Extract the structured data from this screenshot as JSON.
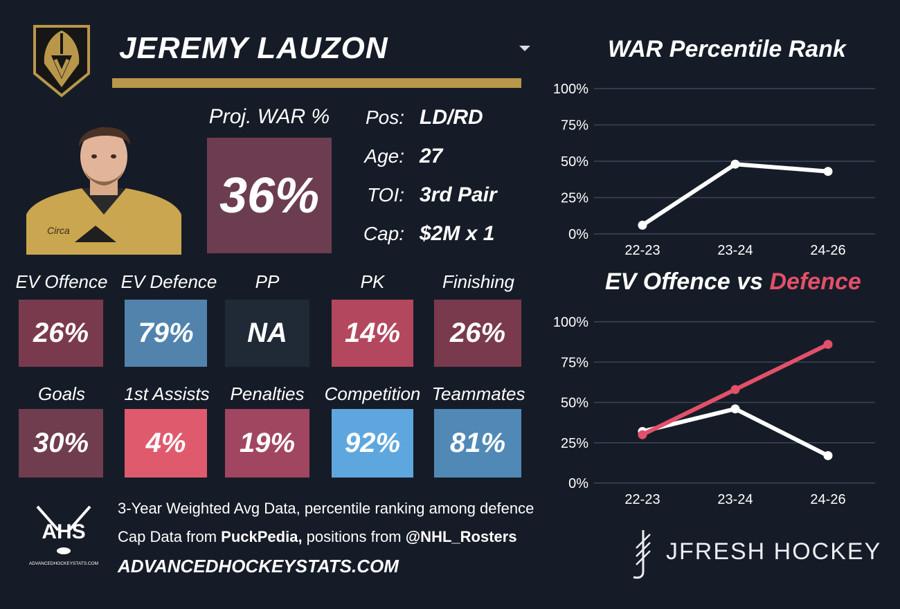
{
  "player": {
    "name": "JEREMY LAUZON",
    "team_logo": "vegas-golden-knights-helmet-logo",
    "headshot": "player-headshot-gold-jersey"
  },
  "projection": {
    "label": "Proj. WAR %",
    "value": "36%",
    "color": "#6c3d50"
  },
  "info": [
    {
      "key": "Pos:",
      "value": "LD/RD"
    },
    {
      "key": "Age:",
      "value": "27"
    },
    {
      "key": "TOI:",
      "value": "3rd Pair"
    },
    {
      "key": "Cap:",
      "value": "$2M x 1"
    }
  ],
  "metrics_row1": [
    {
      "label": "EV Offence",
      "value": "26%",
      "color": "#7a3a4d"
    },
    {
      "label": "EV Defence",
      "value": "79%",
      "color": "#5183ad"
    },
    {
      "label": "PP",
      "value": "NA",
      "color": "#1f2a36"
    },
    {
      "label": "PK",
      "value": "14%",
      "color": "#b3475e"
    },
    {
      "label": "Finishing",
      "value": "26%",
      "color": "#7a3a4d"
    }
  ],
  "metrics_row2": [
    {
      "label": "Goals",
      "value": "30%",
      "color": "#6f3d4d"
    },
    {
      "label": "1st Assists",
      "value": "4%",
      "color": "#e05a6d"
    },
    {
      "label": "Penalties",
      "value": "19%",
      "color": "#a04660"
    },
    {
      "label": "Competition",
      "value": "92%",
      "color": "#5ea7de"
    },
    {
      "label": "Teammates",
      "value": "81%",
      "color": "#5089b6"
    }
  ],
  "footer": {
    "line1": "3-Year Weighted Avg Data, percentile ranking among defence",
    "line2_a": "Cap Data from ",
    "line2_b": "PuckPedia,",
    "line2_c": " positions from ",
    "line2_d": "@NHL_Rosters",
    "url": "ADVANCEDHOCKEYSTATS.COM",
    "ahs_logo_text": "AHS",
    "ahs_logo_subtext": "ADVANCEDHOCKEYSTATS.COM",
    "brand": "JFRESH HOCKEY",
    "brand_icon": "hockey-stick-mark-icon"
  },
  "chart_data": [
    {
      "type": "line",
      "title": "WAR Percentile Rank",
      "categories": [
        "22-23",
        "23-24",
        "24-26"
      ],
      "series": [
        {
          "values": [
            6,
            48,
            43
          ],
          "color": "#ffffff"
        }
      ],
      "yticks": [
        "0%",
        "25%",
        "50%",
        "75%",
        "100%"
      ],
      "ylim": [
        0,
        100
      ],
      "grid": true
    },
    {
      "type": "line",
      "title_a": "EV Offence vs ",
      "title_b": "Defence",
      "categories": [
        "22-23",
        "23-24",
        "24-26"
      ],
      "series": [
        {
          "name": "EV Offence",
          "values": [
            32,
            46,
            17
          ],
          "color": "#ffffff"
        },
        {
          "name": "Defence",
          "values": [
            30,
            58,
            86
          ],
          "color": "#e2506a"
        }
      ],
      "yticks": [
        "0%",
        "25%",
        "50%",
        "75%",
        "100%"
      ],
      "ylim": [
        0,
        100
      ],
      "grid": true
    }
  ]
}
